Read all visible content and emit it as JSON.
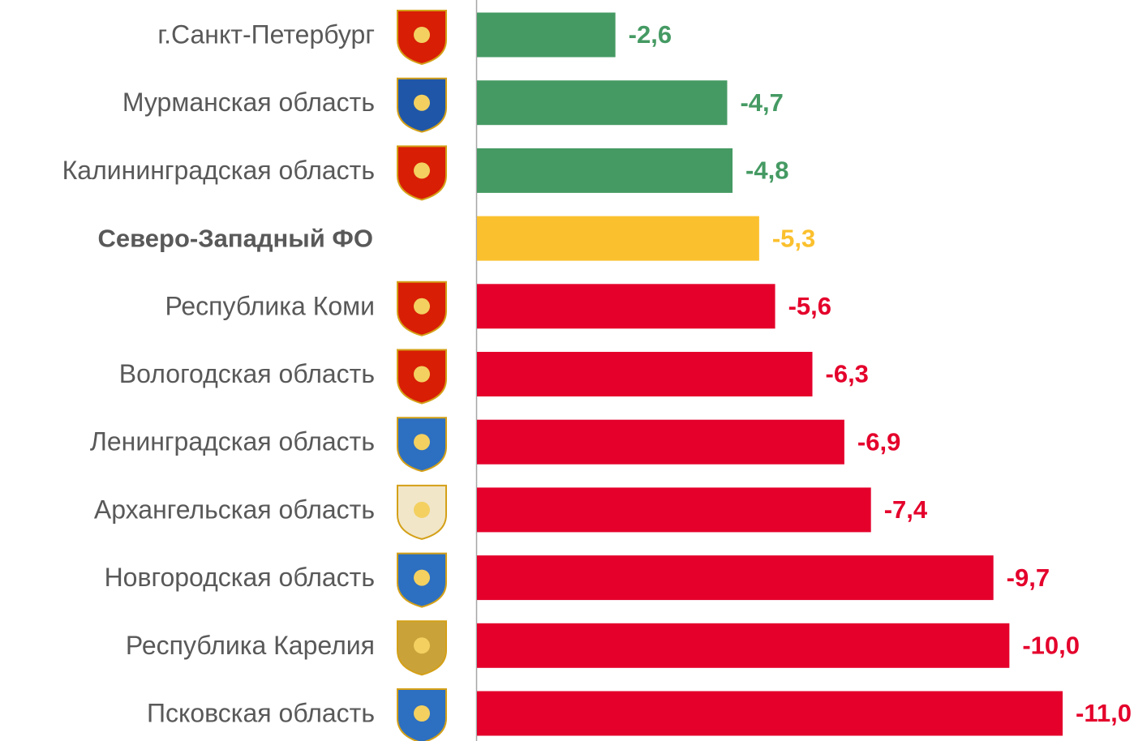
{
  "chart_data": {
    "type": "bar",
    "orientation": "horizontal",
    "categories": [
      "г.Санкт-Петербург",
      "Мурманская область",
      "Калининградская область",
      "Северо-Западный ФО",
      "Республика Коми",
      "Вологодская область",
      "Ленинградская область",
      "Архангельская область",
      "Новгородская область",
      "Республика Карелия",
      "Псковская область"
    ],
    "values": [
      -2.6,
      -4.7,
      -4.8,
      -5.3,
      -5.6,
      -6.3,
      -6.9,
      -7.4,
      -9.7,
      -10.0,
      -11.0
    ],
    "value_labels": [
      "-2,6",
      "-4,7",
      "-4,8",
      "-5,3",
      "-5,6",
      "-6,3",
      "-6,9",
      "-7,4",
      "-9,7",
      "-10,0",
      "-11,0"
    ],
    "colors": [
      "#459a63",
      "#459a63",
      "#459a63",
      "#fbc02d",
      "#e4002b",
      "#e4002b",
      "#e4002b",
      "#e4002b",
      "#e4002b",
      "#e4002b",
      "#e4002b"
    ],
    "highlight_index": 3
  }
}
